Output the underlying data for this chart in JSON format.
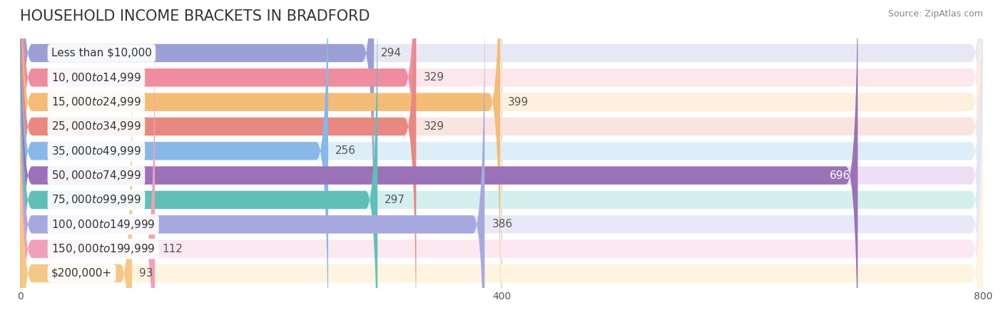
{
  "title": "HOUSEHOLD INCOME BRACKETS IN BRADFORD",
  "source": "Source: ZipAtlas.com",
  "categories": [
    "Less than $10,000",
    "$10,000 to $14,999",
    "$15,000 to $24,999",
    "$25,000 to $34,999",
    "$35,000 to $49,999",
    "$50,000 to $74,999",
    "$75,000 to $99,999",
    "$100,000 to $149,999",
    "$150,000 to $199,999",
    "$200,000+"
  ],
  "values": [
    294,
    329,
    399,
    329,
    256,
    696,
    297,
    386,
    112,
    93
  ],
  "bar_colors": [
    "#9b9fd4",
    "#f08ca0",
    "#f5bc78",
    "#e88880",
    "#88b8e8",
    "#9b72b8",
    "#60c0b8",
    "#a8a8e0",
    "#f0a0b8",
    "#f5c888"
  ],
  "bar_bg_colors": [
    "#e8e8f4",
    "#fce8ec",
    "#fef0dc",
    "#fae4e2",
    "#ddeef8",
    "#ede0f4",
    "#d4f0ee",
    "#e8e8f8",
    "#fce8f0",
    "#fef4e0"
  ],
  "xlim": [
    0,
    800
  ],
  "xticks": [
    0,
    400,
    800
  ],
  "value_color_special": {
    "5": "#ffffff"
  },
  "background_color": "#ffffff",
  "title_fontsize": 15,
  "label_fontsize": 11,
  "value_fontsize": 11
}
